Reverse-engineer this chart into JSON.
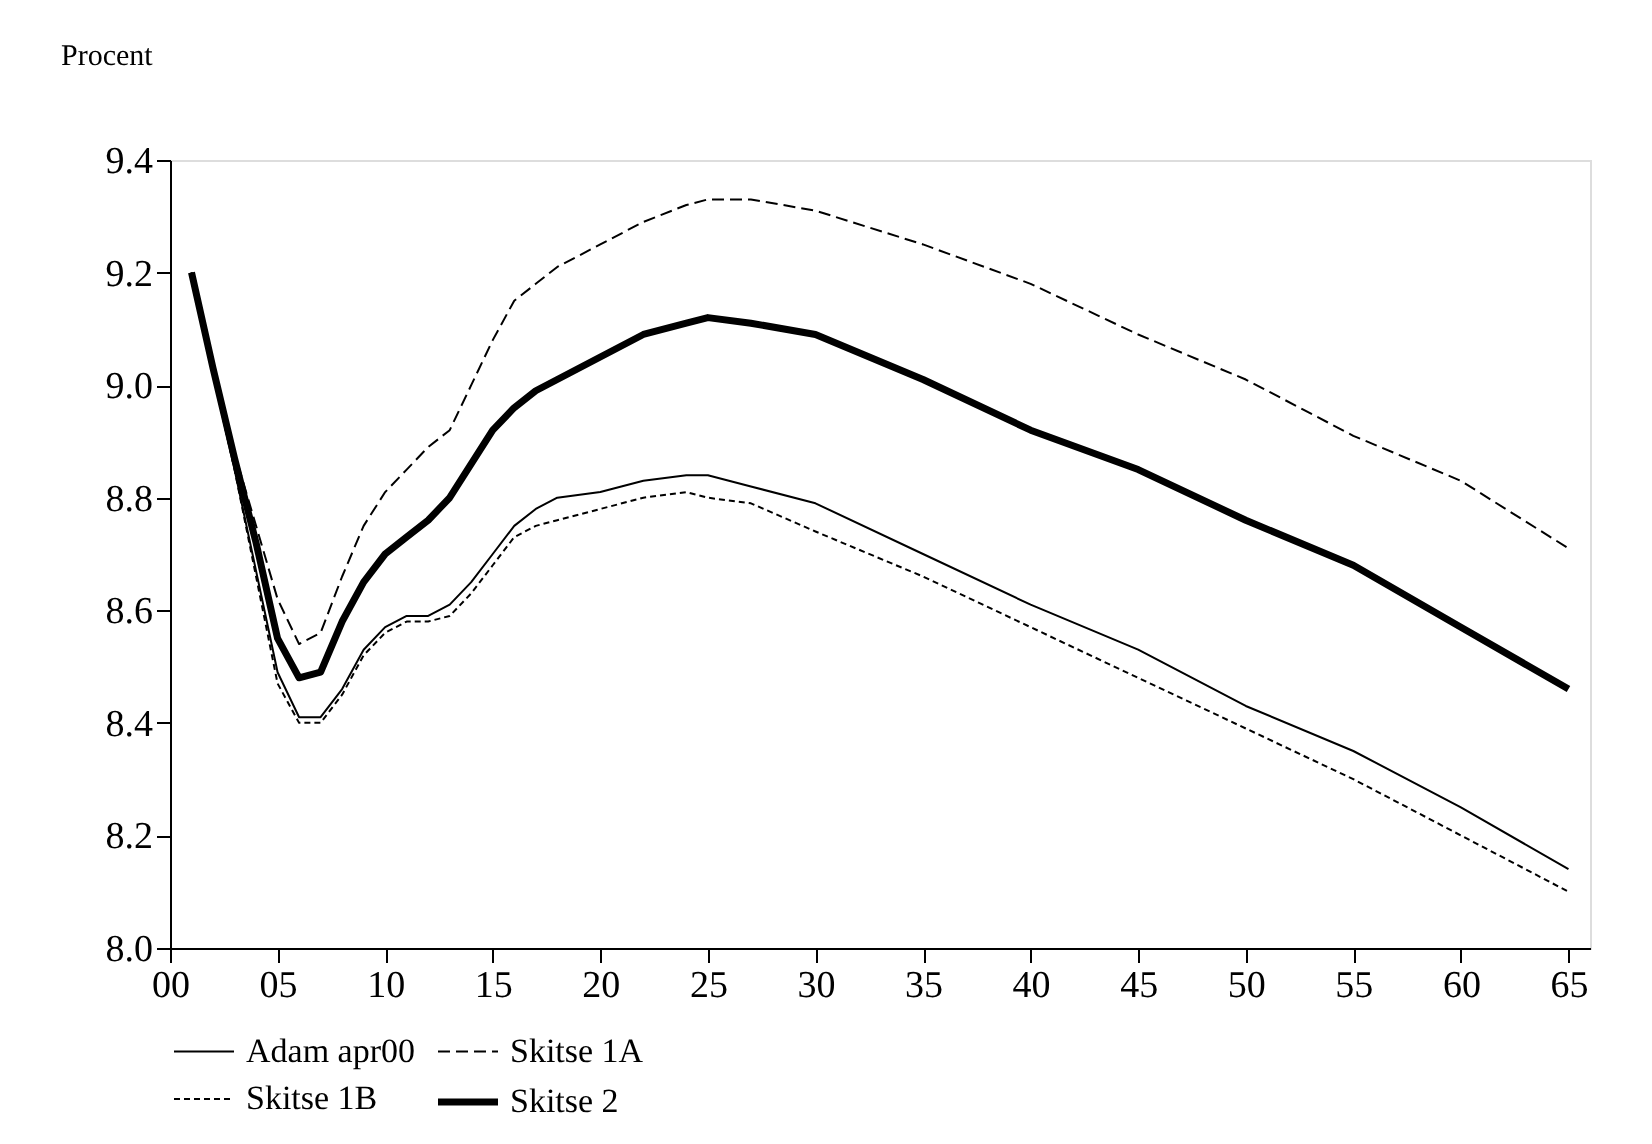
{
  "chart_data": {
    "type": "line",
    "ylabel": "Procent",
    "x": [
      1,
      2,
      3,
      4,
      5,
      6,
      7,
      8,
      9,
      10,
      11,
      12,
      13,
      14,
      15,
      16,
      17,
      18,
      20,
      22,
      24,
      25,
      27,
      30,
      35,
      40,
      45,
      50,
      55,
      60,
      65
    ],
    "series": [
      {
        "name": "Adam apr00",
        "color": "#000000",
        "line_style": "solid",
        "values": [
          9.2,
          9.02,
          8.85,
          8.67,
          8.49,
          8.41,
          8.41,
          8.46,
          8.53,
          8.57,
          8.59,
          8.59,
          8.61,
          8.65,
          8.7,
          8.75,
          8.78,
          8.8,
          8.81,
          8.83,
          8.84,
          8.84,
          8.82,
          8.79,
          8.7,
          8.61,
          8.53,
          8.43,
          8.35,
          8.25,
          8.14
        ]
      },
      {
        "name": "Skitse 1A",
        "color": "#000000",
        "line_style": "dashed",
        "values": [
          9.2,
          9.04,
          8.88,
          8.75,
          8.62,
          8.54,
          8.56,
          8.66,
          8.75,
          8.81,
          8.85,
          8.89,
          8.92,
          9.0,
          9.08,
          9.15,
          9.18,
          9.21,
          9.25,
          9.29,
          9.32,
          9.33,
          9.33,
          9.31,
          9.25,
          9.18,
          9.09,
          9.01,
          8.91,
          8.83,
          8.71
        ]
      },
      {
        "name": "Skitse 1B",
        "color": "#000000",
        "line_style": "dotted",
        "values": [
          9.2,
          9.02,
          8.85,
          8.66,
          8.47,
          8.4,
          8.4,
          8.45,
          8.52,
          8.56,
          8.58,
          8.58,
          8.59,
          8.63,
          8.68,
          8.73,
          8.75,
          8.76,
          8.78,
          8.8,
          8.81,
          8.8,
          8.79,
          8.74,
          8.66,
          8.57,
          8.48,
          8.39,
          8.3,
          8.2,
          8.1
        ]
      },
      {
        "name": "Skitse 2",
        "color": "#000000",
        "line_style": "solid",
        "values": [
          9.2,
          9.03,
          8.87,
          8.72,
          8.55,
          8.48,
          8.49,
          8.58,
          8.65,
          8.7,
          8.73,
          8.76,
          8.8,
          8.86,
          8.92,
          8.96,
          8.99,
          9.01,
          9.05,
          9.09,
          9.11,
          9.12,
          9.11,
          9.09,
          9.01,
          8.92,
          8.85,
          8.76,
          8.68,
          8.57,
          8.46
        ]
      }
    ],
    "xlim": [
      0,
      66
    ],
    "xticks": [
      {
        "value": 0,
        "label": "00"
      },
      {
        "value": 5,
        "label": "05"
      },
      10,
      15,
      20,
      25,
      30,
      35,
      40,
      45,
      50,
      55,
      60,
      65
    ],
    "ylim": [
      8.0,
      9.4
    ],
    "yticks": [
      {
        "value": 8.0,
        "label": "8.0"
      },
      8.2,
      8.4,
      8.6,
      8.8,
      {
        "value": 9.0,
        "label": "9.0"
      },
      9.2,
      9.4
    ],
    "grid": false,
    "legend": "bottom left",
    "marker": "none"
  }
}
